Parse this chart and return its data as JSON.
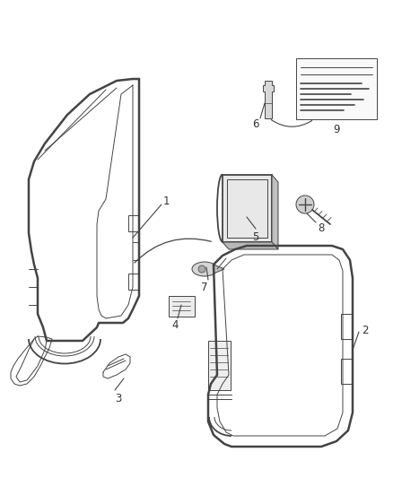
{
  "background_color": "#ffffff",
  "figsize": [
    4.38,
    5.33
  ],
  "dpi": 100,
  "line_color": "#444444",
  "text_color": "#333333",
  "lw_main": 1.3,
  "lw_thin": 0.7,
  "lw_thick": 1.8
}
